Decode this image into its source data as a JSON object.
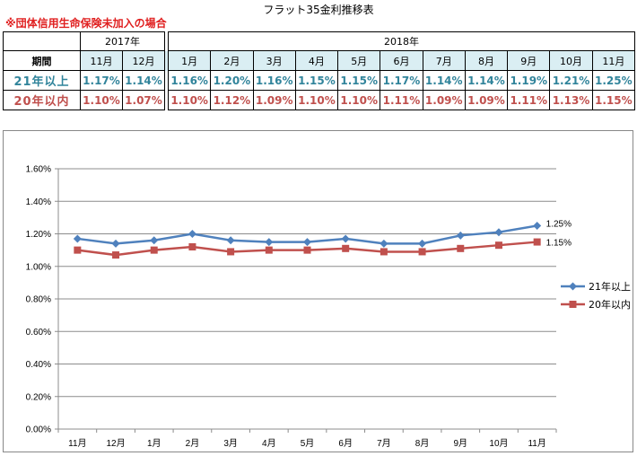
{
  "title": "フラット35金利推移表",
  "note": "※団体信用生命保険未加入の場合",
  "table": {
    "years": [
      {
        "label": "2017年",
        "span": 2
      },
      {
        "label": "2018年",
        "span": 11
      }
    ],
    "period_label": "期間",
    "months": [
      "11月",
      "12月",
      "1月",
      "2月",
      "3月",
      "4月",
      "5月",
      "6月",
      "7月",
      "8月",
      "9月",
      "10月",
      "11月"
    ],
    "rows": [
      {
        "label": "21年以上",
        "values": [
          "1.17%",
          "1.14%",
          "1.16%",
          "1.20%",
          "1.16%",
          "1.15%",
          "1.15%",
          "1.17%",
          "1.14%",
          "1.14%",
          "1.19%",
          "1.21%",
          "1.25%"
        ]
      },
      {
        "label": "20年以内",
        "values": [
          "1.10%",
          "1.07%",
          "1.10%",
          "1.12%",
          "1.09%",
          "1.10%",
          "1.10%",
          "1.11%",
          "1.09%",
          "1.09%",
          "1.11%",
          "1.13%",
          "1.15%"
        ]
      }
    ]
  },
  "chart_data": {
    "type": "line",
    "categories": [
      "11月",
      "12月",
      "1月",
      "2月",
      "3月",
      "4月",
      "5月",
      "6月",
      "7月",
      "8月",
      "9月",
      "10月",
      "11月"
    ],
    "series": [
      {
        "name": "21年以上",
        "color": "#4f81bd",
        "marker": "diamond",
        "values": [
          1.17,
          1.14,
          1.16,
          1.2,
          1.16,
          1.15,
          1.15,
          1.17,
          1.14,
          1.14,
          1.19,
          1.21,
          1.25
        ],
        "end_label": "1.25%"
      },
      {
        "name": "20年以内",
        "color": "#c0504d",
        "marker": "square",
        "values": [
          1.1,
          1.07,
          1.1,
          1.12,
          1.09,
          1.1,
          1.1,
          1.11,
          1.09,
          1.09,
          1.11,
          1.13,
          1.15
        ],
        "end_label": "1.15%"
      }
    ],
    "ylim": [
      0,
      1.6
    ],
    "yticks": [
      "0.00%",
      "0.20%",
      "0.40%",
      "0.60%",
      "0.80%",
      "1.00%",
      "1.20%",
      "1.40%",
      "1.60%"
    ],
    "grid": true,
    "legend": "right"
  }
}
